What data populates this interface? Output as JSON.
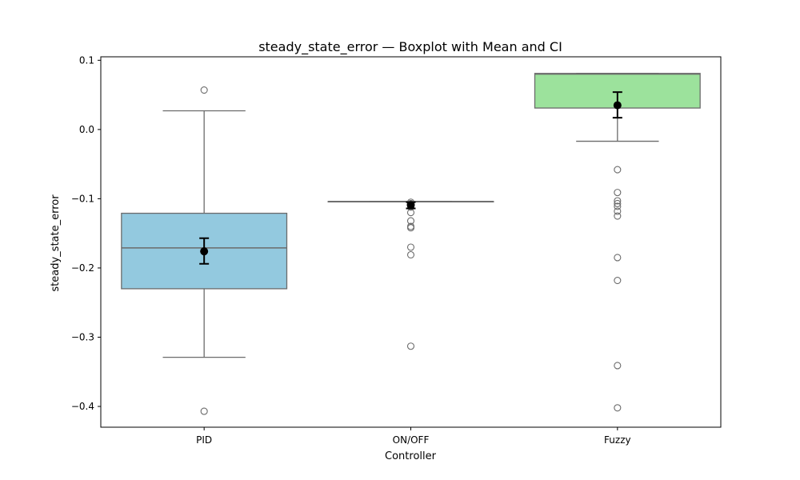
{
  "chart_data": {
    "type": "boxplot",
    "title": "steady_state_error — Boxplot with Mean and CI",
    "xlabel": "Controller",
    "ylabel": "steady_state_error",
    "ylim": [
      -0.43,
      0.105
    ],
    "yticks": [
      0.1,
      0.0,
      -0.1,
      -0.2,
      -0.3,
      -0.4
    ],
    "ytick_labels": [
      "0.1",
      "0.0",
      "−0.1",
      "−0.2",
      "−0.3",
      "−0.4"
    ],
    "grid": false,
    "categories": [
      "PID",
      "ON/OFF",
      "Fuzzy"
    ],
    "boxes": [
      {
        "category": "PID",
        "color": "#93c9df",
        "q1": -0.23,
        "median": -0.171,
        "q3": -0.121,
        "whisker_low": -0.329,
        "whisker_high": 0.027,
        "mean": -0.176,
        "ci": [
          -0.194,
          -0.157
        ],
        "outliers": [
          0.057,
          -0.407
        ]
      },
      {
        "category": "ON/OFF",
        "color": "#c0c0c0",
        "q1": -0.104,
        "median": -0.104,
        "q3": -0.104,
        "whisker_low": -0.104,
        "whisker_high": -0.104,
        "mean": -0.109,
        "ci": [
          -0.114,
          -0.105
        ],
        "outliers": [
          -0.105,
          -0.107,
          -0.112,
          -0.12,
          -0.132,
          -0.14,
          -0.142,
          -0.17,
          -0.181,
          -0.313
        ]
      },
      {
        "category": "Fuzzy",
        "color": "#9ce29c",
        "q1": 0.031,
        "median": 0.08,
        "q3": 0.081,
        "whisker_low": -0.017,
        "whisker_high": 0.081,
        "mean": 0.035,
        "ci": [
          0.017,
          0.054
        ],
        "outliers": [
          -0.058,
          -0.091,
          -0.103,
          -0.107,
          -0.111,
          -0.118,
          -0.125,
          -0.185,
          -0.218,
          -0.341,
          -0.402
        ]
      }
    ],
    "colors": {
      "box_edge": "#6b6b6b",
      "mean_marker": "#000000",
      "outlier_edge": "#6b6b6b"
    }
  }
}
